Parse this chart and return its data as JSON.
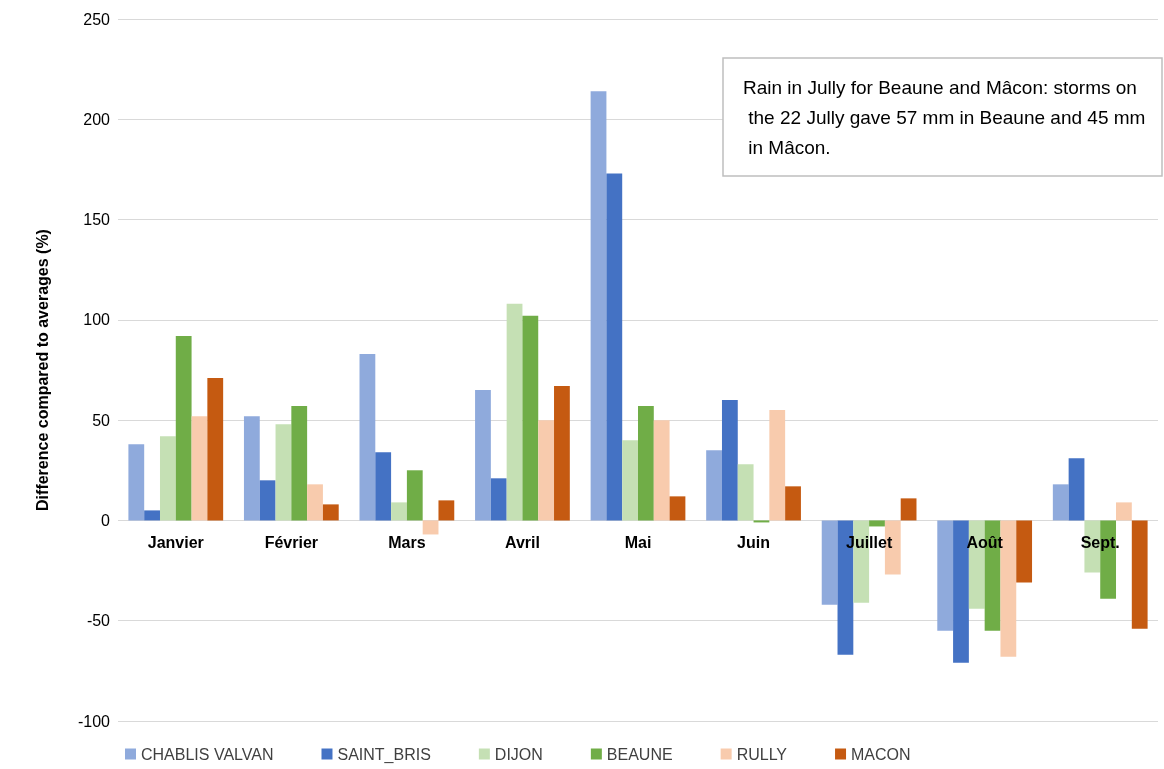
{
  "chart_data": {
    "type": "bar",
    "ylabel": "Difference compared to averages (%)",
    "categories": [
      "Janvier",
      "Février",
      "Mars",
      "Avril",
      "Mai",
      "Juin",
      "Juillet",
      "Août",
      "Sept."
    ],
    "series": [
      {
        "name": "CHABLIS VALVAN",
        "color": "#8faadc",
        "values": [
          38,
          52,
          83,
          65,
          214,
          35,
          -42,
          -55,
          18
        ]
      },
      {
        "name": "SAINT_BRIS",
        "color": "#4472c4",
        "values": [
          5,
          20,
          34,
          21,
          173,
          60,
          -67,
          -71,
          31
        ]
      },
      {
        "name": "DIJON",
        "color": "#c5e0b4",
        "values": [
          42,
          48,
          9,
          108,
          40,
          28,
          -41,
          -44,
          -26
        ]
      },
      {
        "name": "BEAUNE",
        "color": "#70ad47",
        "values": [
          92,
          57,
          25,
          102,
          57,
          -1,
          -3,
          -55,
          -39
        ]
      },
      {
        "name": "RULLY",
        "color": "#f8cbad",
        "values": [
          52,
          18,
          -7,
          50,
          50,
          55,
          -27,
          -68,
          9
        ]
      },
      {
        "name": "MACON",
        "color": "#c55a11",
        "values": [
          71,
          8,
          10,
          67,
          12,
          17,
          11,
          -31,
          -54
        ]
      }
    ],
    "ylim": [
      -100,
      250
    ],
    "yticks": [
      -100,
      -50,
      0,
      50,
      100,
      150,
      200,
      250
    ],
    "grid": "y",
    "legend": "bottom",
    "annotations": [
      "Rain in Jully for Beaune and Mâcon: storms on the 22 Jully gave 57 mm in Beaune and 45 mm in Mâcon."
    ]
  }
}
